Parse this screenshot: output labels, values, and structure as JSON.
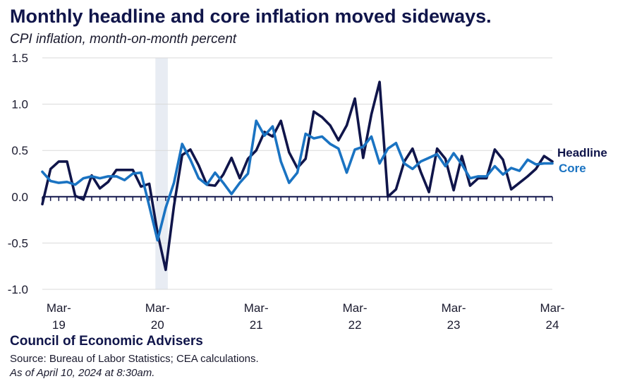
{
  "title": "Monthly headline and core inflation moved sideways.",
  "subtitle": "CPI inflation, month-on-month percent",
  "footer": {
    "organization": "Council of Economic Advisers",
    "source": "Source: Bureau of Labor Statistics; CEA calculations.",
    "as_of": "As of April 10, 2024 at 8:30am."
  },
  "colors": {
    "headline": "#10154a",
    "core": "#1a73c2",
    "recession_shading": "#e8ecf3"
  },
  "chart_data": {
    "type": "line",
    "title": "Monthly headline and core inflation moved sideways.",
    "subtitle": "CPI inflation, month-on-month percent",
    "ylim": [
      -1.0,
      1.5
    ],
    "yticks": [
      "-1.0",
      "-0.5",
      "0.0",
      "0.5",
      "1.0",
      "1.5"
    ],
    "x_start": "2019-01",
    "x_end": "2024-03",
    "xtick_labels": [
      {
        "month": "Mar",
        "year": "19"
      },
      {
        "month": "Mar",
        "year": "20"
      },
      {
        "month": "Mar",
        "year": "21"
      },
      {
        "month": "Mar",
        "year": "22"
      },
      {
        "month": "Mar",
        "year": "23"
      },
      {
        "month": "Mar",
        "year": "24"
      }
    ],
    "shaded_period": [
      "2020-03",
      "2020-04"
    ],
    "grid": "horizontal",
    "legend": "right, inline labels",
    "series": [
      {
        "name": "Headline",
        "start": "2019-01",
        "values": [
          -0.08,
          0.3,
          0.38,
          0.38,
          0.01,
          -0.03,
          0.23,
          0.09,
          0.16,
          0.29,
          0.29,
          0.29,
          0.11,
          0.14,
          -0.39,
          -0.79,
          -0.1,
          0.45,
          0.51,
          0.34,
          0.13,
          0.12,
          0.24,
          0.42,
          0.2,
          0.41,
          0.5,
          0.7,
          0.65,
          0.82,
          0.48,
          0.31,
          0.41,
          0.92,
          0.86,
          0.77,
          0.61,
          0.77,
          1.06,
          0.42,
          0.89,
          1.24,
          0.0,
          0.08,
          0.38,
          0.52,
          0.27,
          0.05,
          0.52,
          0.41,
          0.07,
          0.44,
          0.12,
          0.2,
          0.2,
          0.51,
          0.4,
          0.08,
          0.15,
          0.22,
          0.3,
          0.44,
          0.38
        ]
      },
      {
        "name": "Core",
        "start": "2019-01",
        "values": [
          0.27,
          0.17,
          0.15,
          0.16,
          0.13,
          0.2,
          0.22,
          0.2,
          0.22,
          0.22,
          0.18,
          0.25,
          0.26,
          -0.1,
          -0.47,
          -0.12,
          0.15,
          0.57,
          0.4,
          0.2,
          0.13,
          0.26,
          0.15,
          0.03,
          0.15,
          0.25,
          0.82,
          0.66,
          0.76,
          0.38,
          0.15,
          0.26,
          0.68,
          0.63,
          0.65,
          0.57,
          0.52,
          0.26,
          0.51,
          0.54,
          0.65,
          0.36,
          0.52,
          0.58,
          0.36,
          0.3,
          0.38,
          0.42,
          0.46,
          0.33,
          0.47,
          0.35,
          0.2,
          0.22,
          0.22,
          0.33,
          0.24,
          0.31,
          0.28,
          0.4,
          0.35,
          0.36,
          0.36
        ]
      }
    ]
  }
}
